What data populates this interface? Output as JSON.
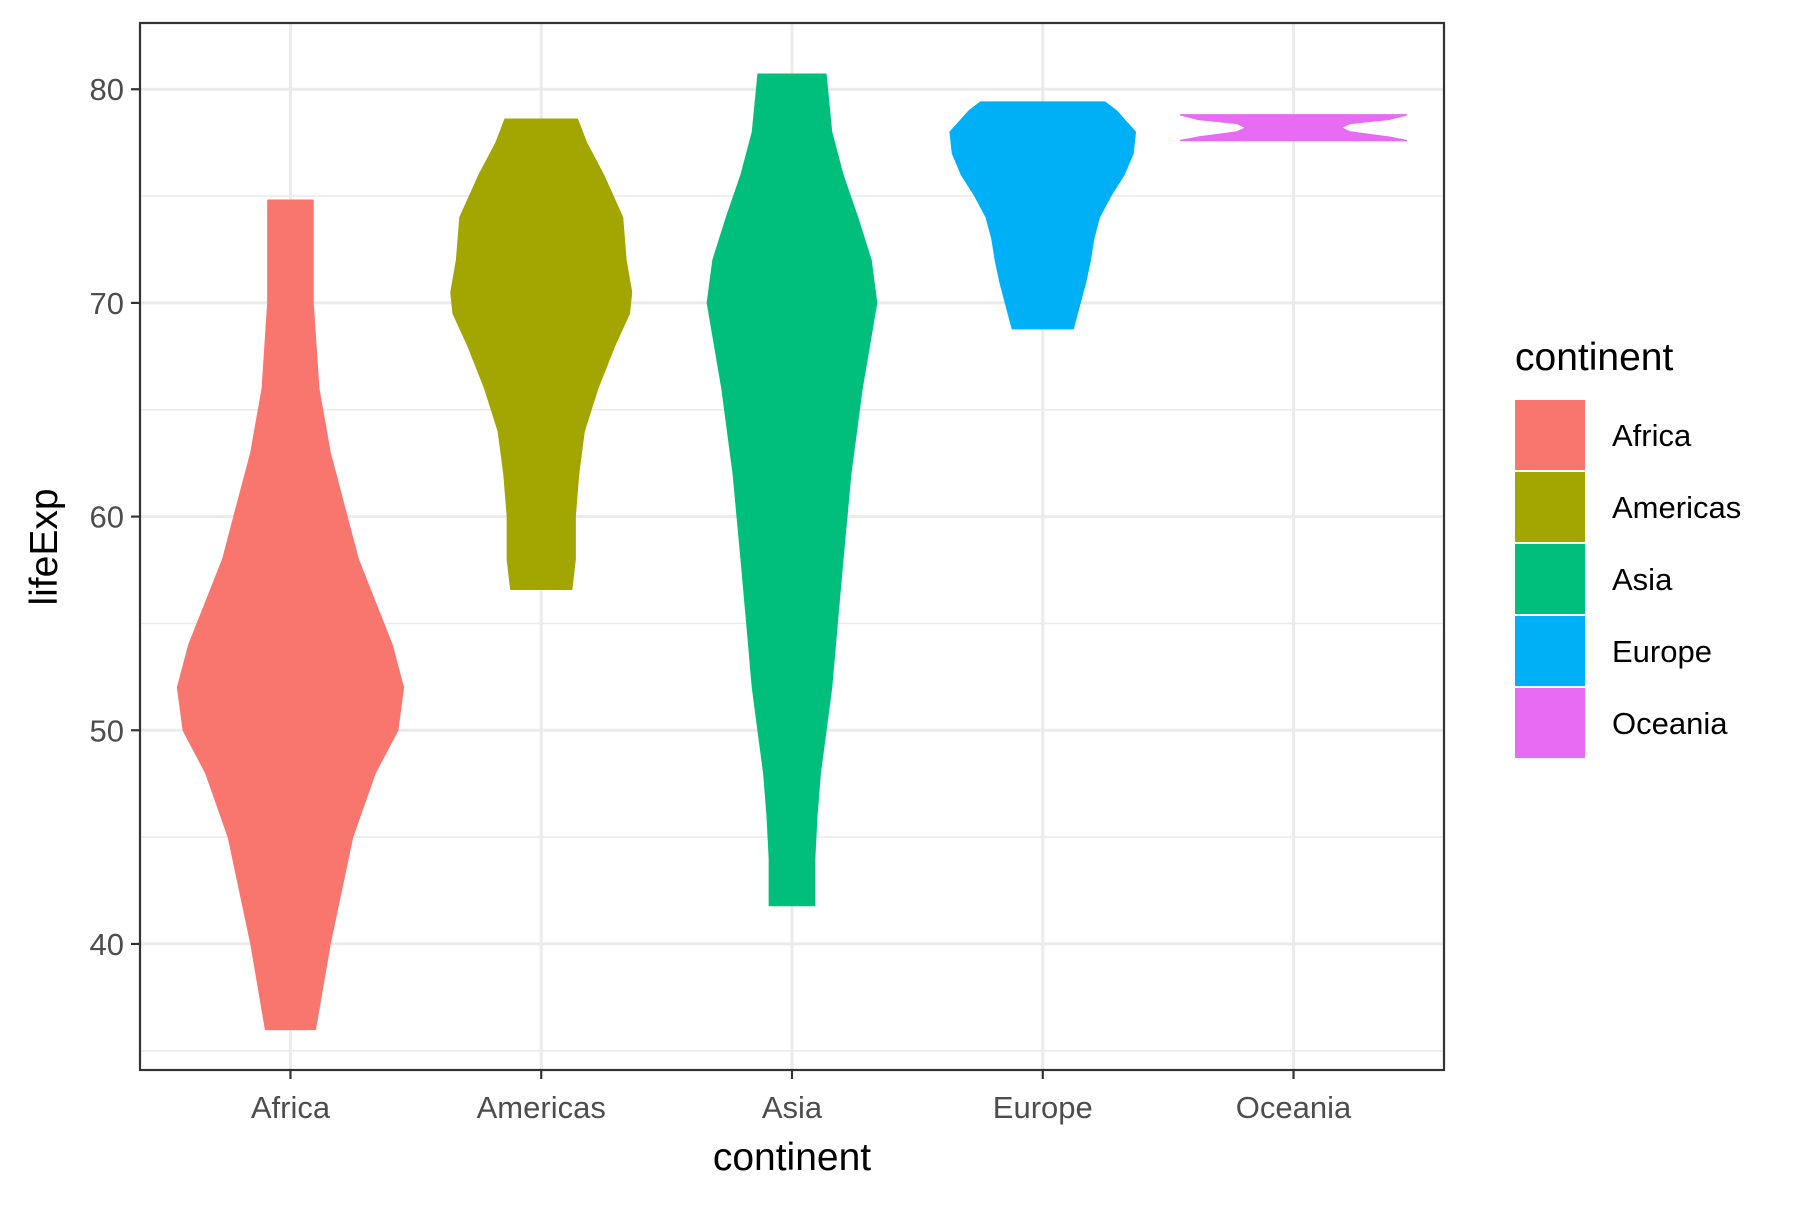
{
  "chart_data": {
    "type": "violin",
    "title": "",
    "xlabel": "continent",
    "ylabel": "lifeExp",
    "categories": [
      "Africa",
      "Americas",
      "Asia",
      "Europe",
      "Oceania"
    ],
    "ylim": [
      34.1,
      83.1
    ],
    "yticks": [
      40,
      50,
      60,
      70,
      80
    ],
    "y_minor": [
      35,
      45,
      55,
      65,
      75
    ],
    "grid": true,
    "legend": {
      "title": "continent",
      "position": "right",
      "entries": [
        "Africa",
        "Americas",
        "Asia",
        "Europe",
        "Oceania"
      ]
    },
    "colors": {
      "Africa": "#F8766D",
      "Americas": "#A3A500",
      "Asia": "#00BF7D",
      "Europe": "#00B0F6",
      "Oceania": "#E76BF3"
    },
    "series": [
      {
        "name": "Africa",
        "min": 36.0,
        "max": 74.8,
        "density": [
          [
            36.0,
            0.22
          ],
          [
            40,
            0.35
          ],
          [
            45,
            0.55
          ],
          [
            48,
            0.75
          ],
          [
            50,
            0.95
          ],
          [
            52,
            1.0
          ],
          [
            54,
            0.9
          ],
          [
            56,
            0.75
          ],
          [
            58,
            0.6
          ],
          [
            60,
            0.5
          ],
          [
            63,
            0.35
          ],
          [
            66,
            0.25
          ],
          [
            70,
            0.2
          ],
          [
            74.8,
            0.2
          ]
        ]
      },
      {
        "name": "Americas",
        "min": 56.6,
        "max": 78.6,
        "density": [
          [
            56.6,
            0.27
          ],
          [
            58,
            0.3
          ],
          [
            60,
            0.3
          ],
          [
            62,
            0.33
          ],
          [
            64,
            0.38
          ],
          [
            66,
            0.5
          ],
          [
            68,
            0.65
          ],
          [
            69.5,
            0.78
          ],
          [
            70.5,
            0.8
          ],
          [
            72,
            0.75
          ],
          [
            74,
            0.72
          ],
          [
            76,
            0.55
          ],
          [
            77.5,
            0.4
          ],
          [
            78.6,
            0.32
          ]
        ]
      },
      {
        "name": "Asia",
        "min": 41.8,
        "max": 80.7,
        "density": [
          [
            41.8,
            0.2
          ],
          [
            44,
            0.2
          ],
          [
            46,
            0.22
          ],
          [
            48,
            0.25
          ],
          [
            50,
            0.3
          ],
          [
            52,
            0.35
          ],
          [
            55,
            0.4
          ],
          [
            58,
            0.45
          ],
          [
            62,
            0.52
          ],
          [
            66,
            0.62
          ],
          [
            70,
            0.75
          ],
          [
            72,
            0.7
          ],
          [
            74,
            0.58
          ],
          [
            76,
            0.45
          ],
          [
            78,
            0.35
          ],
          [
            80.7,
            0.3
          ]
        ]
      },
      {
        "name": "Europe",
        "min": 68.8,
        "max": 79.4,
        "density": [
          [
            68.8,
            0.27
          ],
          [
            70,
            0.33
          ],
          [
            71,
            0.38
          ],
          [
            72,
            0.42
          ],
          [
            73,
            0.45
          ],
          [
            74,
            0.5
          ],
          [
            75,
            0.6
          ],
          [
            76,
            0.72
          ],
          [
            77,
            0.8
          ],
          [
            78,
            0.82
          ],
          [
            79,
            0.65
          ],
          [
            79.4,
            0.55
          ]
        ]
      },
      {
        "name": "Oceania",
        "min": 77.6,
        "max": 78.8,
        "density": [
          [
            77.6,
            1.0
          ],
          [
            77.75,
            0.85
          ],
          [
            78.0,
            0.5
          ],
          [
            78.2,
            0.42
          ],
          [
            78.4,
            0.5
          ],
          [
            78.6,
            0.85
          ],
          [
            78.8,
            1.0
          ]
        ]
      }
    ]
  }
}
